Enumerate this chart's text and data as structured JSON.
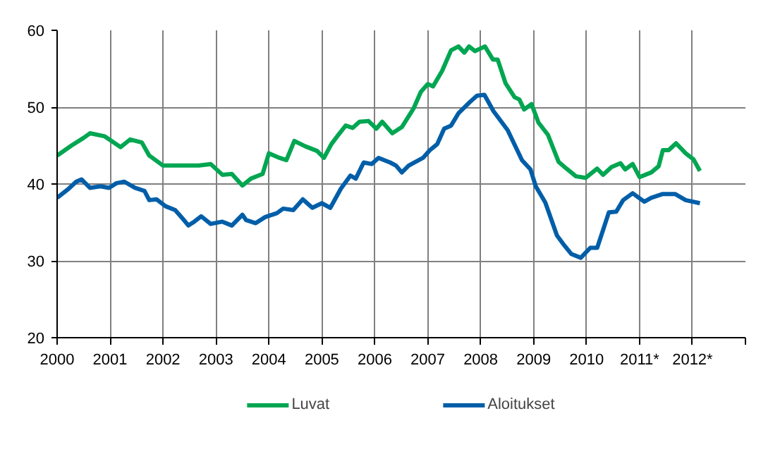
{
  "chart_data": {
    "type": "line",
    "xlim": [
      2000,
      2013
    ],
    "ylim": [
      20,
      60
    ],
    "xticks": [
      2000,
      2001,
      2002,
      2003,
      2004,
      2005,
      2006,
      2007,
      2008,
      2009,
      2010,
      {
        "value": 2011,
        "label": "2011*"
      },
      {
        "value": 2012,
        "label": "2012*"
      },
      {
        "value": 2013,
        "label": null
      }
    ],
    "yticks": [
      20,
      30,
      40,
      50,
      60
    ],
    "grid": true,
    "legend": "bottom",
    "line_style": "solid",
    "marker": "none",
    "series": [
      {
        "name": "Luvat",
        "color": "#00a651",
        "x": [
          2000.0,
          2000.27,
          2000.5,
          2000.62,
          2000.9,
          2001.2,
          2001.38,
          2001.6,
          2001.74,
          2002.0,
          2002.3,
          2002.68,
          2002.9,
          2003.12,
          2003.3,
          2003.5,
          2003.66,
          2003.88,
          2004.0,
          2004.2,
          2004.33,
          2004.48,
          2004.69,
          2004.91,
          2005.04,
          2005.18,
          2005.29,
          2005.45,
          2005.58,
          2005.71,
          2005.88,
          2006.03,
          2006.14,
          2006.33,
          2006.51,
          2006.73,
          2006.87,
          2007.0,
          2007.1,
          2007.27,
          2007.44,
          2007.58,
          2007.69,
          2007.78,
          2007.89,
          2008.08,
          2008.23,
          2008.32,
          2008.47,
          2008.64,
          2008.73,
          2008.82,
          2008.96,
          2009.09,
          2009.27,
          2009.47,
          2009.62,
          2009.8,
          2009.98,
          2010.2,
          2010.31,
          2010.47,
          2010.64,
          2010.73,
          2010.87,
          2011.0,
          2011.22,
          2011.36,
          2011.44,
          2011.55,
          2011.69,
          2011.87,
          2012.02,
          2012.14
        ],
        "values": [
          43.7,
          45.0,
          46.0,
          46.6,
          46.2,
          44.8,
          45.8,
          45.4,
          43.7,
          42.4,
          42.4,
          42.4,
          42.6,
          41.2,
          41.3,
          39.8,
          40.7,
          41.3,
          44.0,
          43.4,
          43.1,
          45.6,
          44.9,
          44.3,
          43.4,
          45.2,
          46.2,
          47.6,
          47.3,
          48.1,
          48.2,
          47.2,
          48.1,
          46.6,
          47.4,
          49.8,
          52.0,
          53.0,
          52.7,
          54.7,
          57.4,
          57.9,
          57.1,
          57.9,
          57.3,
          57.9,
          56.2,
          56.2,
          53.1,
          51.3,
          51.0,
          49.7,
          50.4,
          48.0,
          46.4,
          42.9,
          42.0,
          41.0,
          40.8,
          42.0,
          41.2,
          42.2,
          42.7,
          41.9,
          42.6,
          40.9,
          41.5,
          42.3,
          44.4,
          44.4,
          45.3,
          44.0,
          43.2,
          41.7
        ]
      },
      {
        "name": "Aloitukset",
        "color": "#005ea8",
        "x": [
          2000.0,
          2000.22,
          2000.36,
          2000.46,
          2000.62,
          2000.82,
          2000.98,
          2001.12,
          2001.27,
          2001.47,
          2001.65,
          2001.74,
          2001.88,
          2002.05,
          2002.23,
          2002.37,
          2002.48,
          2002.59,
          2002.72,
          2002.9,
          2003.12,
          2003.3,
          2003.5,
          2003.57,
          2003.75,
          2003.93,
          2004.15,
          2004.27,
          2004.46,
          2004.64,
          2004.82,
          2005.0,
          2005.16,
          2005.36,
          2005.54,
          2005.64,
          2005.79,
          2005.94,
          2006.07,
          2006.29,
          2006.4,
          2006.51,
          2006.64,
          2006.91,
          2007.04,
          2007.18,
          2007.31,
          2007.44,
          2007.58,
          2007.8,
          2007.93,
          2008.07,
          2008.24,
          2008.51,
          2008.78,
          2008.94,
          2009.04,
          2009.22,
          2009.44,
          2009.58,
          2009.71,
          2009.89,
          2010.07,
          2010.2,
          2010.42,
          2010.56,
          2010.69,
          2010.87,
          2011.09,
          2011.22,
          2011.44,
          2011.67,
          2011.87,
          2012.14
        ],
        "values": [
          38.2,
          39.4,
          40.3,
          40.6,
          39.5,
          39.7,
          39.5,
          40.1,
          40.3,
          39.5,
          39.1,
          37.9,
          38.0,
          37.1,
          36.6,
          35.5,
          34.6,
          35.1,
          35.8,
          34.8,
          35.1,
          34.6,
          36.0,
          35.3,
          34.9,
          35.7,
          36.2,
          36.8,
          36.6,
          38.0,
          36.9,
          37.5,
          36.9,
          39.4,
          41.1,
          40.7,
          42.8,
          42.6,
          43.4,
          42.8,
          42.4,
          41.5,
          42.4,
          43.4,
          44.4,
          45.2,
          47.2,
          47.6,
          49.2,
          50.7,
          51.5,
          51.6,
          49.5,
          47.0,
          43.1,
          41.9,
          39.7,
          37.6,
          33.3,
          32.0,
          30.9,
          30.4,
          31.7,
          31.7,
          36.3,
          36.4,
          37.9,
          38.8,
          37.7,
          38.2,
          38.7,
          38.7,
          37.9,
          37.5
        ]
      }
    ]
  }
}
